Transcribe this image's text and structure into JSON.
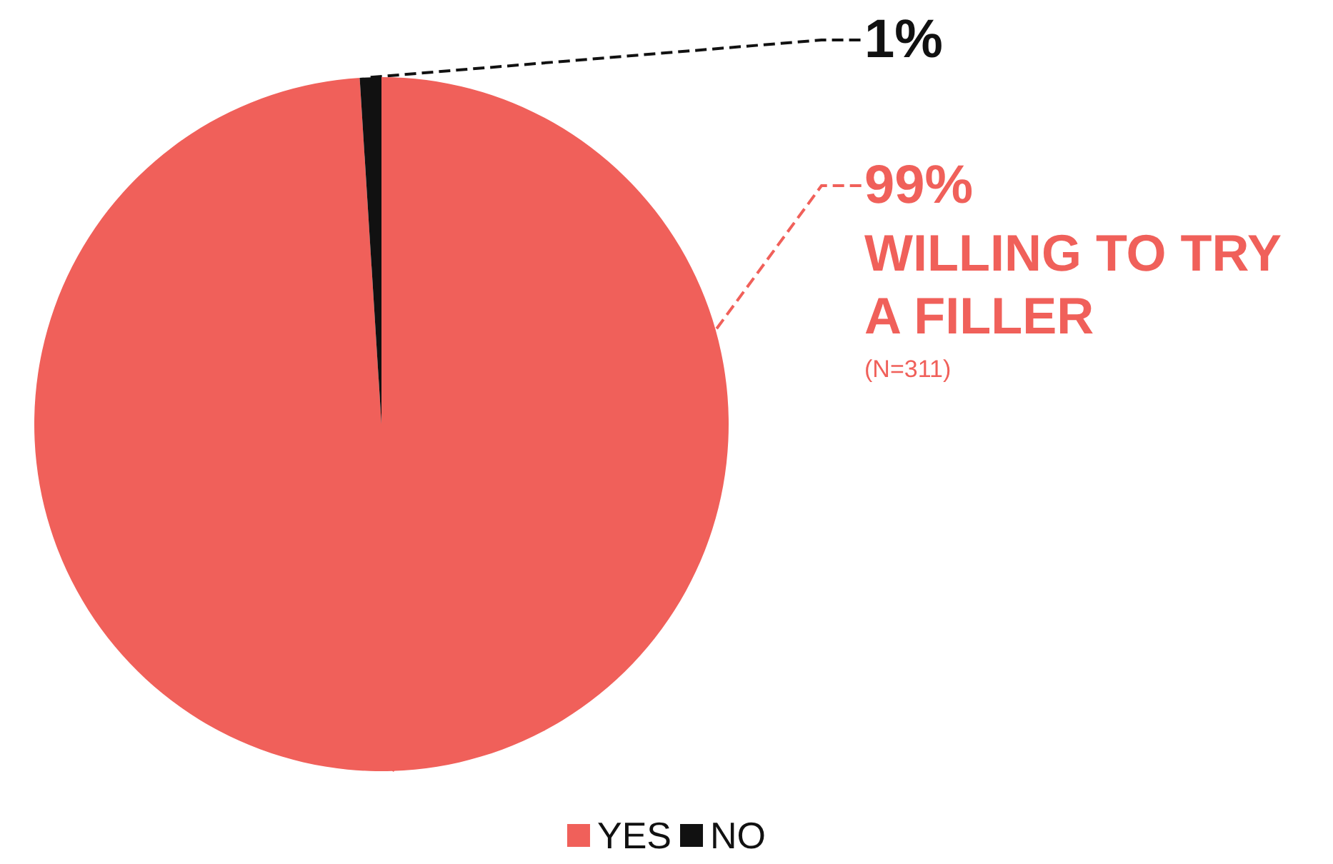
{
  "chart_data": {
    "type": "pie",
    "categories": [
      "YES",
      "NO"
    ],
    "values": [
      99,
      1
    ],
    "colors": [
      "#f0605a",
      "#111111"
    ],
    "value_labels": [
      "99%",
      "1%"
    ],
    "annotations": [
      "WILLING TO TRY A FILLER",
      "(N=311)"
    ],
    "legend": "bottom"
  }
}
